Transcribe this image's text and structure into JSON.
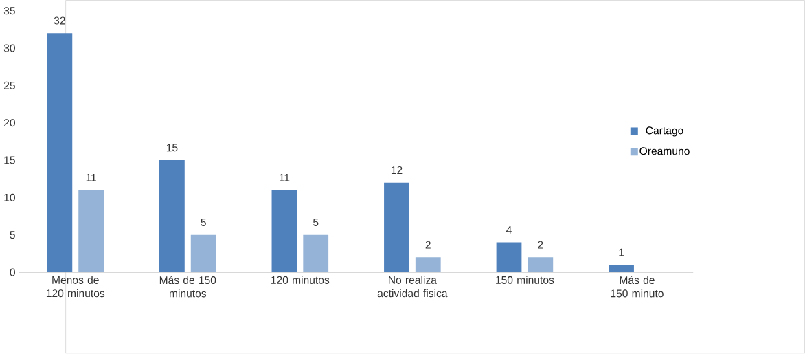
{
  "chart_data": {
    "type": "bar",
    "categories": [
      "Menos de 120 minutos",
      "Más de 150 minutos",
      "120 minutos",
      "No realiza actividad fisica",
      "150 minutos",
      "Más de 150 minuto"
    ],
    "series": [
      {
        "name": "Cartago",
        "color": "#4f81bd",
        "values": [
          32,
          15,
          11,
          12,
          4,
          1
        ]
      },
      {
        "name": "Oreamuno",
        "color": "#95b3d7",
        "values": [
          11,
          5,
          5,
          2,
          2,
          null
        ]
      }
    ],
    "ylim": [
      0,
      35
    ],
    "yticks": [
      0,
      5,
      10,
      15,
      20,
      25,
      30,
      35
    ],
    "grid": false,
    "legend": "right",
    "data_labels": true
  }
}
